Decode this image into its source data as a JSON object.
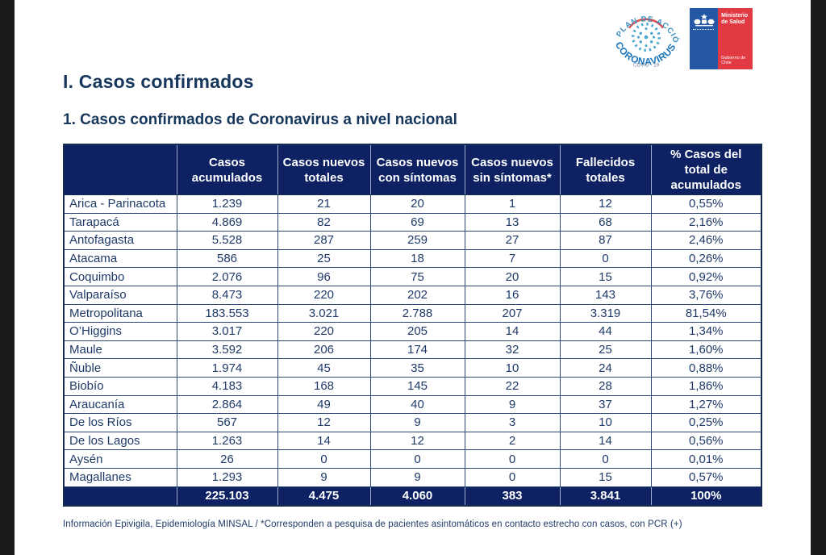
{
  "page": {
    "heading1": "I. Casos confirmados",
    "heading2": "1. Casos confirmados de Coronavirus a nivel nacional",
    "footer_note": "Información Epivigila, Epidemiología MINSAL / *Corresponden a pesquisa de pacientes asintomáticos en contacto estrecho con casos, con PCR (+)"
  },
  "logos": {
    "plan_accion": {
      "arc_top": "PLAN DE ACCIÓN",
      "arc_bottom": "CORONAVIRUS",
      "subtitle": "COVID - 19"
    },
    "ministry": {
      "line1": "Ministerio de Salud",
      "line2": "Gobierno de Chile"
    }
  },
  "colors": {
    "header_bg": "#0d2163",
    "table_text": "#1f3a68",
    "heading_text": "#17375d",
    "logo_blue": "#2457a5",
    "logo_red": "#e13a42",
    "arc_teal": "#3a8fc0",
    "arc_blue": "#1b75bb",
    "arc_red": "#d94f4f"
  },
  "table": {
    "columns": [
      "",
      "Casos acumulados",
      "Casos nuevos totales",
      "Casos nuevos con síntomas",
      "Casos nuevos sin síntomas*",
      "Fallecidos totales",
      "% Casos del total de acumulados"
    ],
    "rows": [
      {
        "region": "Arica - Parinacota",
        "values": [
          "1.239",
          "21",
          "20",
          "1",
          "12",
          "0,55%"
        ]
      },
      {
        "region": "Tarapacá",
        "values": [
          "4.869",
          "82",
          "69",
          "13",
          "68",
          "2,16%"
        ]
      },
      {
        "region": "Antofagasta",
        "values": [
          "5.528",
          "287",
          "259",
          "27",
          "87",
          "2,46%"
        ]
      },
      {
        "region": "Atacama",
        "values": [
          "586",
          "25",
          "18",
          "7",
          "0",
          "0,26%"
        ]
      },
      {
        "region": "Coquimbo",
        "values": [
          "2.076",
          "96",
          "75",
          "20",
          "15",
          "0,92%"
        ]
      },
      {
        "region": "Valparaíso",
        "values": [
          "8.473",
          "220",
          "202",
          "16",
          "143",
          "3,76%"
        ]
      },
      {
        "region": "Metropolitana",
        "values": [
          "183.553",
          "3.021",
          "2.788",
          "207",
          "3.319",
          "81,54%"
        ]
      },
      {
        "region": "O’Higgins",
        "values": [
          "3.017",
          "220",
          "205",
          "14",
          "44",
          "1,34%"
        ]
      },
      {
        "region": "Maule",
        "values": [
          "3.592",
          "206",
          "174",
          "32",
          "25",
          "1,60%"
        ]
      },
      {
        "region": "Ñuble",
        "values": [
          "1.974",
          "45",
          "35",
          "10",
          "24",
          "0,88%"
        ]
      },
      {
        "region": "Biobío",
        "values": [
          "4.183",
          "168",
          "145",
          "22",
          "28",
          "1,86%"
        ]
      },
      {
        "region": "Araucanía",
        "values": [
          "2.864",
          "49",
          "40",
          "9",
          "37",
          "1,27%"
        ]
      },
      {
        "region": "De los Ríos",
        "values": [
          "567",
          "12",
          "9",
          "3",
          "10",
          "0,25%"
        ]
      },
      {
        "region": "De los Lagos",
        "values": [
          "1.263",
          "14",
          "12",
          "2",
          "14",
          "0,56%"
        ]
      },
      {
        "region": "Aysén",
        "values": [
          "26",
          "0",
          "0",
          "0",
          "0",
          "0,01%"
        ]
      },
      {
        "region": "Magallanes",
        "values": [
          "1.293",
          "9",
          "9",
          "0",
          "15",
          "0,57%"
        ]
      }
    ],
    "total": {
      "region": "",
      "values": [
        "225.103",
        "4.475",
        "4.060",
        "383",
        "3.841",
        "100%"
      ]
    }
  }
}
